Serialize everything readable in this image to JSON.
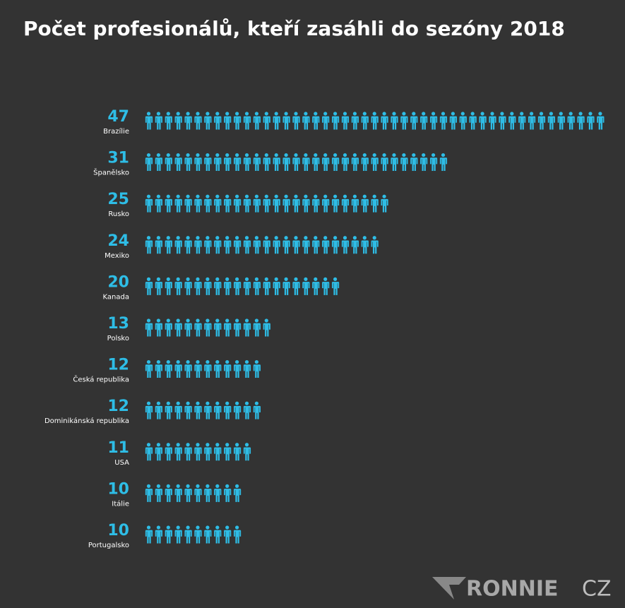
{
  "chart_data": {
    "type": "pictogram",
    "title": "Počet profesionálů, kteří zasáhli do sezóny 2018",
    "categories": [
      "Brazílie",
      "Španělsko",
      "Rusko",
      "Mexiko",
      "Kanada",
      "Polsko",
      "Česká republika",
      "Dominikánská republika",
      "USA",
      "Itálie",
      "Portugalsko"
    ],
    "values": [
      47,
      31,
      25,
      24,
      20,
      13,
      12,
      12,
      11,
      10,
      10
    ],
    "color": "#2ebde6",
    "watermark": [
      "RONNIE",
      "CZ"
    ]
  }
}
